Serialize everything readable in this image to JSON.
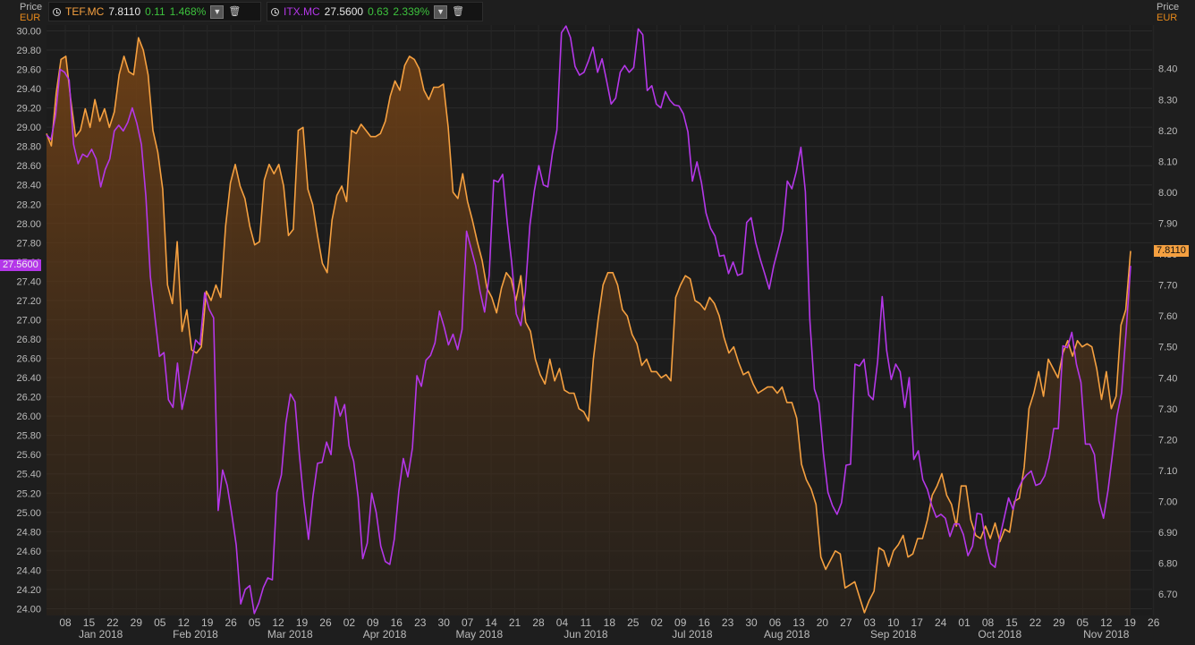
{
  "legend": [
    {
      "symbol": "TEF.MC",
      "last": "7.8110",
      "change": "0.11",
      "pct": "1.468%",
      "color": "#f5a040"
    },
    {
      "symbol": "ITX.MC",
      "last": "27.5600",
      "change": "0.63",
      "pct": "2.339%",
      "color": "#b437e8"
    }
  ],
  "left_axis": {
    "title": "Price",
    "unit": "EUR"
  },
  "right_axis": {
    "title": "Price",
    "unit": "EUR"
  },
  "tags": {
    "left": "27.5600",
    "right": "7.8110"
  },
  "colors": {
    "background": "#1e1e1e",
    "tef": "#f5a040",
    "itx": "#b437e8",
    "positive": "#3dc23d",
    "grid": "#303030",
    "text": "#bbbbbb"
  },
  "chart_data": {
    "type": "line",
    "x_axis_days": [
      "08",
      "15",
      "22",
      "29",
      "05",
      "12",
      "19",
      "26",
      "05",
      "12",
      "19",
      "26",
      "02",
      "09",
      "16",
      "23",
      "30",
      "07",
      "14",
      "21",
      "28",
      "04",
      "11",
      "18",
      "25",
      "02",
      "09",
      "16",
      "23",
      "30",
      "06",
      "13",
      "20",
      "27",
      "03",
      "10",
      "17",
      "24",
      "01",
      "08",
      "15",
      "22",
      "29",
      "05",
      "12",
      "19",
      "26"
    ],
    "x_axis_months": [
      {
        "label": "Jan 2018",
        "day_index": 1.5
      },
      {
        "label": "Feb 2018",
        "day_index": 5.5
      },
      {
        "label": "Mar 2018",
        "day_index": 9.5
      },
      {
        "label": "Apr 2018",
        "day_index": 13.5
      },
      {
        "label": "May 2018",
        "day_index": 17.5
      },
      {
        "label": "Jun 2018",
        "day_index": 22
      },
      {
        "label": "Jul 2018",
        "day_index": 26.5
      },
      {
        "label": "Aug 2018",
        "day_index": 30.5
      },
      {
        "label": "Sep 2018",
        "day_index": 35
      },
      {
        "label": "Oct 2018",
        "day_index": 39.5
      },
      {
        "label": "Nov 2018",
        "day_index": 44
      }
    ],
    "left_axis": {
      "ticks": [
        "30.00",
        "29.80",
        "29.60",
        "29.40",
        "29.20",
        "29.00",
        "28.80",
        "28.60",
        "28.40",
        "28.20",
        "28.00",
        "27.80",
        "27.60",
        "27.40",
        "27.20",
        "27.00",
        "26.80",
        "26.60",
        "26.40",
        "26.20",
        "26.00",
        "25.80",
        "25.60",
        "25.40",
        "25.20",
        "25.00",
        "24.80",
        "24.60",
        "24.40",
        "24.20",
        "24.00"
      ],
      "ylim": [
        23.93,
        30.06
      ]
    },
    "right_axis": {
      "ticks": [
        "8.40",
        "8.30",
        "8.20",
        "8.10",
        "8.00",
        "7.90",
        "7.80",
        "7.70",
        "7.60",
        "7.50",
        "7.40",
        "7.30",
        "7.20",
        "7.10",
        "7.00",
        "6.90",
        "6.80",
        "6.70"
      ],
      "ylim": [
        6.631,
        8.541
      ]
    },
    "series": [
      {
        "name": "TEF.MC",
        "axis": "right",
        "area": true,
        "values": [
          8.19,
          8.15,
          8.32,
          8.43,
          8.44,
          8.3,
          8.18,
          8.2,
          8.27,
          8.21,
          8.3,
          8.23,
          8.27,
          8.21,
          8.26,
          8.38,
          8.44,
          8.39,
          8.38,
          8.5,
          8.46,
          8.38,
          8.2,
          8.13,
          8.01,
          7.7,
          7.64,
          7.84,
          7.55,
          7.62,
          7.49,
          7.48,
          7.5,
          7.68,
          7.65,
          7.7,
          7.66,
          7.89,
          8.03,
          8.09,
          8.02,
          7.98,
          7.89,
          7.83,
          7.84,
          8.04,
          8.09,
          8.06,
          8.09,
          8.02,
          7.86,
          7.88,
          8.2,
          8.21,
          8.01,
          7.96,
          7.86,
          7.77,
          7.74,
          7.91,
          7.99,
          8.02,
          7.97,
          8.2,
          8.19,
          8.22,
          8.2,
          8.18,
          8.18,
          8.19,
          8.23,
          8.31,
          8.36,
          8.33,
          8.41,
          8.44,
          8.43,
          8.4,
          8.33,
          8.3,
          8.34,
          8.34,
          8.35,
          8.21,
          8.0,
          7.98,
          8.06,
          7.97,
          7.91,
          7.84,
          7.78,
          7.69,
          7.66,
          7.61,
          7.69,
          7.74,
          7.72,
          7.65,
          7.73,
          7.58,
          7.55,
          7.46,
          7.41,
          7.38,
          7.46,
          7.39,
          7.43,
          7.36,
          7.35,
          7.35,
          7.3,
          7.29,
          7.26,
          7.46,
          7.59,
          7.7,
          7.74,
          7.74,
          7.7,
          7.62,
          7.6,
          7.54,
          7.51,
          7.44,
          7.46,
          7.42,
          7.42,
          7.4,
          7.41,
          7.39,
          7.66,
          7.7,
          7.73,
          7.72,
          7.65,
          7.64,
          7.62,
          7.66,
          7.64,
          7.6,
          7.53,
          7.48,
          7.5,
          7.45,
          7.41,
          7.42,
          7.38,
          7.35,
          7.36,
          7.37,
          7.37,
          7.35,
          7.37,
          7.32,
          7.32,
          7.27,
          7.12,
          7.07,
          7.04,
          6.99,
          6.82,
          6.78,
          6.81,
          6.84,
          6.83,
          6.72,
          6.73,
          6.74,
          6.69,
          6.64,
          6.68,
          6.71,
          6.85,
          6.84,
          6.79,
          6.84,
          6.86,
          6.89,
          6.82,
          6.83,
          6.88,
          6.88,
          6.94,
          7.02,
          7.05,
          7.09,
          7.02,
          6.99,
          6.92,
          7.05,
          7.05,
          6.94,
          6.89,
          6.88,
          6.92,
          6.88,
          6.93,
          6.87,
          6.91,
          6.9,
          7.0,
          7.01,
          7.11,
          7.3,
          7.35,
          7.42,
          7.34,
          7.46,
          7.43,
          7.4,
          7.48,
          7.52,
          7.47,
          7.52,
          7.5,
          7.51,
          7.5,
          7.43,
          7.33,
          7.42,
          7.3,
          7.34,
          7.57,
          7.62,
          7.81
        ]
      },
      {
        "name": "ITX.MC",
        "axis": "left",
        "area": false,
        "values": [
          28.92,
          28.87,
          29.12,
          29.6,
          29.57,
          29.49,
          28.82,
          28.62,
          28.72,
          28.69,
          28.77,
          28.67,
          28.38,
          28.56,
          28.67,
          28.96,
          29.02,
          28.96,
          29.05,
          29.2,
          29.04,
          28.82,
          28.28,
          27.45,
          27.03,
          26.62,
          26.66,
          26.17,
          26.09,
          26.55,
          26.07,
          26.28,
          26.53,
          26.79,
          26.74,
          27.28,
          27.11,
          27.02,
          25.02,
          25.44,
          25.28,
          24.99,
          24.66,
          24.05,
          24.2,
          24.24,
          23.95,
          24.06,
          24.22,
          24.32,
          24.3,
          25.21,
          25.39,
          25.93,
          26.23,
          26.15,
          25.59,
          25.11,
          24.72,
          25.17,
          25.51,
          25.52,
          25.73,
          25.6,
          26.2,
          26.0,
          26.12,
          25.69,
          25.53,
          25.16,
          24.52,
          24.68,
          25.2,
          25.0,
          24.65,
          24.49,
          24.46,
          24.72,
          25.22,
          25.56,
          25.37,
          25.67,
          26.42,
          26.31,
          26.58,
          26.63,
          26.76,
          27.09,
          26.93,
          26.74,
          26.85,
          26.69,
          26.9,
          27.92,
          27.74,
          27.56,
          27.29,
          27.08,
          27.46,
          28.45,
          28.43,
          28.51,
          28.01,
          27.59,
          27.06,
          26.94,
          27.29,
          27.98,
          28.34,
          28.6,
          28.4,
          28.38,
          28.73,
          28.97,
          29.98,
          30.05,
          29.93,
          29.63,
          29.54,
          29.57,
          29.69,
          29.83,
          29.57,
          29.71,
          29.48,
          29.24,
          29.3,
          29.57,
          29.64,
          29.57,
          29.62,
          30.02,
          29.96,
          29.38,
          29.43,
          29.24,
          29.2,
          29.37,
          29.28,
          29.23,
          29.22,
          29.14,
          28.95,
          28.44,
          28.64,
          28.42,
          28.11,
          27.95,
          27.87,
          27.66,
          27.67,
          27.48,
          27.6,
          27.46,
          27.48,
          28.01,
          28.06,
          27.8,
          27.63,
          27.48,
          27.32,
          27.56,
          27.74,
          27.93,
          28.44,
          28.36,
          28.54,
          28.79,
          28.33,
          27.0,
          26.28,
          26.14,
          25.61,
          25.21,
          25.07,
          24.98,
          25.1,
          25.49,
          25.5,
          26.54,
          26.52,
          26.59,
          26.22,
          26.17,
          26.57,
          27.24,
          26.68,
          26.38,
          26.54,
          26.46,
          26.09,
          26.4,
          25.55,
          25.64,
          25.34,
          25.24,
          25.07,
          24.95,
          24.98,
          24.94,
          24.75,
          24.88,
          24.88,
          24.77,
          24.55,
          24.65,
          24.99,
          24.98,
          24.66,
          24.47,
          24.43,
          24.73,
          24.94,
          25.15,
          25.03,
          25.23,
          25.33,
          25.39,
          25.43,
          25.28,
          25.3,
          25.38,
          25.57,
          25.87,
          25.87,
          26.73,
          26.71,
          26.87,
          26.54,
          26.35,
          25.71,
          25.71,
          25.6,
          25.12,
          24.94,
          25.23,
          25.61,
          26.0,
          26.24,
          26.88,
          27.56
        ]
      }
    ]
  }
}
